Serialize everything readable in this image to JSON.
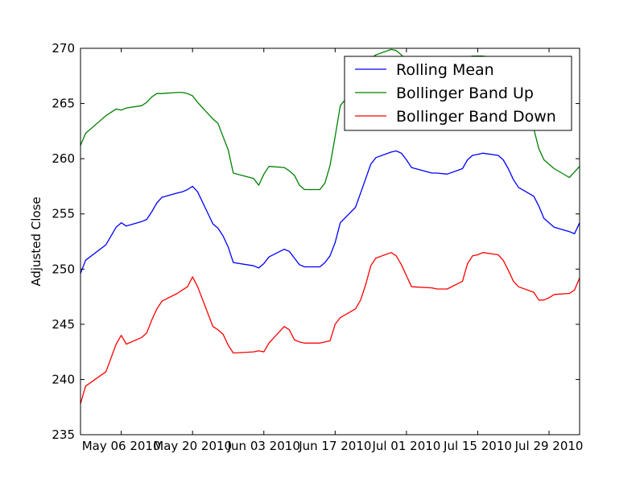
{
  "chart_data": {
    "type": "line",
    "title": "",
    "xlabel": "",
    "ylabel": "Adjusted Close",
    "xlim": [
      "2010-04-28",
      "2010-08-04"
    ],
    "ylim": [
      235,
      270
    ],
    "grid": false,
    "legend_position": "top-right",
    "x_tick_labels": [
      "May 06 2010",
      "May 20 2010",
      "Jun 03 2010",
      "Jun 17 2010",
      "Jul 01 2010",
      "Jul 15 2010",
      "Jul 29 2010"
    ],
    "x_tick_dates": [
      "2010-05-06",
      "2010-05-20",
      "2010-06-03",
      "2010-06-17",
      "2010-07-01",
      "2010-07-15",
      "2010-07-29"
    ],
    "y_tick_labels": [
      "235",
      "240",
      "245",
      "250",
      "255",
      "260",
      "265",
      "270"
    ],
    "y_tick_values": [
      235,
      240,
      245,
      250,
      255,
      260,
      265,
      270
    ],
    "series": [
      {
        "name": "Rolling Mean",
        "color": "#0000ff",
        "points": [
          [
            "2010-04-28",
            249.6
          ],
          [
            "2010-04-29",
            250.8
          ],
          [
            "2010-05-03",
            252.2
          ],
          [
            "2010-05-05",
            253.8
          ],
          [
            "2010-05-06",
            254.2
          ],
          [
            "2010-05-07",
            253.9
          ],
          [
            "2010-05-10",
            254.3
          ],
          [
            "2010-05-11",
            254.5
          ],
          [
            "2010-05-12",
            255.2
          ],
          [
            "2010-05-13",
            256.0
          ],
          [
            "2010-05-14",
            256.5
          ],
          [
            "2010-05-17",
            256.9
          ],
          [
            "2010-05-18",
            257.0
          ],
          [
            "2010-05-19",
            257.2
          ],
          [
            "2010-05-20",
            257.5
          ],
          [
            "2010-05-21",
            257.0
          ],
          [
            "2010-05-24",
            254.1
          ],
          [
            "2010-05-25",
            253.7
          ],
          [
            "2010-05-26",
            253.0
          ],
          [
            "2010-05-27",
            252.0
          ],
          [
            "2010-05-28",
            250.6
          ],
          [
            "2010-06-01",
            250.3
          ],
          [
            "2010-06-02",
            250.1
          ],
          [
            "2010-06-03",
            250.5
          ],
          [
            "2010-06-04",
            251.1
          ],
          [
            "2010-06-07",
            251.8
          ],
          [
            "2010-06-08",
            251.6
          ],
          [
            "2010-06-09",
            251.0
          ],
          [
            "2010-06-10",
            250.4
          ],
          [
            "2010-06-11",
            250.2
          ],
          [
            "2010-06-14",
            250.2
          ],
          [
            "2010-06-15",
            250.6
          ],
          [
            "2010-06-16",
            251.2
          ],
          [
            "2010-06-17",
            252.4
          ],
          [
            "2010-06-18",
            254.2
          ],
          [
            "2010-06-21",
            255.6
          ],
          [
            "2010-06-22",
            256.9
          ],
          [
            "2010-06-23",
            258.2
          ],
          [
            "2010-06-24",
            259.5
          ],
          [
            "2010-06-25",
            260.1
          ],
          [
            "2010-06-28",
            260.6
          ],
          [
            "2010-06-29",
            260.7
          ],
          [
            "2010-06-30",
            260.5
          ],
          [
            "2010-07-01",
            259.9
          ],
          [
            "2010-07-02",
            259.2
          ],
          [
            "2010-07-06",
            258.7
          ],
          [
            "2010-07-07",
            258.7
          ],
          [
            "2010-07-09",
            258.6
          ],
          [
            "2010-07-12",
            259.1
          ],
          [
            "2010-07-13",
            259.9
          ],
          [
            "2010-07-14",
            260.3
          ],
          [
            "2010-07-15",
            260.4
          ],
          [
            "2010-07-16",
            260.5
          ],
          [
            "2010-07-19",
            260.3
          ],
          [
            "2010-07-20",
            259.9
          ],
          [
            "2010-07-21",
            259.1
          ],
          [
            "2010-07-22",
            258.1
          ],
          [
            "2010-07-23",
            257.4
          ],
          [
            "2010-07-26",
            256.6
          ],
          [
            "2010-07-27",
            255.7
          ],
          [
            "2010-07-28",
            254.6
          ],
          [
            "2010-07-29",
            254.2
          ],
          [
            "2010-07-30",
            253.8
          ],
          [
            "2010-08-02",
            253.4
          ],
          [
            "2010-08-03",
            253.2
          ],
          [
            "2010-08-04",
            254.2
          ]
        ]
      },
      {
        "name": "Bollinger Band Up",
        "color": "#008000",
        "points": [
          [
            "2010-04-28",
            261.2
          ],
          [
            "2010-04-29",
            262.3
          ],
          [
            "2010-05-03",
            263.9
          ],
          [
            "2010-05-05",
            264.5
          ],
          [
            "2010-05-06",
            264.4
          ],
          [
            "2010-05-07",
            264.6
          ],
          [
            "2010-05-10",
            264.8
          ],
          [
            "2010-05-11",
            265.1
          ],
          [
            "2010-05-12",
            265.6
          ],
          [
            "2010-05-13",
            265.9
          ],
          [
            "2010-05-14",
            265.9
          ],
          [
            "2010-05-17",
            266.0
          ],
          [
            "2010-05-18",
            266.0
          ],
          [
            "2010-05-19",
            265.9
          ],
          [
            "2010-05-20",
            265.7
          ],
          [
            "2010-05-21",
            265.1
          ],
          [
            "2010-05-24",
            263.6
          ],
          [
            "2010-05-25",
            263.2
          ],
          [
            "2010-05-26",
            262.0
          ],
          [
            "2010-05-27",
            260.8
          ],
          [
            "2010-05-28",
            258.7
          ],
          [
            "2010-06-01",
            258.2
          ],
          [
            "2010-06-02",
            257.6
          ],
          [
            "2010-06-03",
            258.6
          ],
          [
            "2010-06-04",
            259.3
          ],
          [
            "2010-06-07",
            259.2
          ],
          [
            "2010-06-08",
            258.9
          ],
          [
            "2010-06-09",
            258.5
          ],
          [
            "2010-06-10",
            257.6
          ],
          [
            "2010-06-11",
            257.2
          ],
          [
            "2010-06-14",
            257.2
          ],
          [
            "2010-06-15",
            257.8
          ],
          [
            "2010-06-16",
            259.4
          ],
          [
            "2010-06-17",
            262.0
          ],
          [
            "2010-06-18",
            264.8
          ],
          [
            "2010-06-21",
            266.5
          ],
          [
            "2010-06-22",
            267.8
          ],
          [
            "2010-06-23",
            268.6
          ],
          [
            "2010-06-24",
            269.1
          ],
          [
            "2010-06-25",
            269.4
          ],
          [
            "2010-06-28",
            269.9
          ],
          [
            "2010-06-29",
            269.8
          ],
          [
            "2010-06-30",
            269.4
          ],
          [
            "2010-07-01",
            268.9
          ],
          [
            "2010-07-02",
            268.9
          ],
          [
            "2010-07-06",
            268.9
          ],
          [
            "2010-07-07",
            268.9
          ],
          [
            "2010-07-09",
            269.0
          ],
          [
            "2010-07-12",
            269.0
          ],
          [
            "2010-07-13",
            269.2
          ],
          [
            "2010-07-14",
            269.3
          ],
          [
            "2010-07-15",
            269.3
          ],
          [
            "2010-07-16",
            269.3
          ],
          [
            "2010-07-19",
            269.1
          ],
          [
            "2010-07-20",
            268.2
          ],
          [
            "2010-07-21",
            266.9
          ],
          [
            "2010-07-22",
            265.9
          ],
          [
            "2010-07-23",
            264.7
          ],
          [
            "2010-07-26",
            262.7
          ],
          [
            "2010-07-27",
            260.9
          ],
          [
            "2010-07-28",
            259.9
          ],
          [
            "2010-07-29",
            259.5
          ],
          [
            "2010-07-30",
            259.1
          ],
          [
            "2010-08-02",
            258.3
          ],
          [
            "2010-08-03",
            258.8
          ],
          [
            "2010-08-04",
            259.3
          ]
        ]
      },
      {
        "name": "Bollinger Band Down",
        "color": "#ff0000",
        "points": [
          [
            "2010-04-28",
            237.8
          ],
          [
            "2010-04-29",
            239.4
          ],
          [
            "2010-05-03",
            240.7
          ],
          [
            "2010-05-05",
            243.2
          ],
          [
            "2010-05-06",
            244.0
          ],
          [
            "2010-05-07",
            243.2
          ],
          [
            "2010-05-10",
            243.8
          ],
          [
            "2010-05-11",
            244.2
          ],
          [
            "2010-05-12",
            245.4
          ],
          [
            "2010-05-13",
            246.4
          ],
          [
            "2010-05-14",
            247.1
          ],
          [
            "2010-05-17",
            247.8
          ],
          [
            "2010-05-18",
            248.1
          ],
          [
            "2010-05-19",
            248.4
          ],
          [
            "2010-05-20",
            249.3
          ],
          [
            "2010-05-21",
            248.4
          ],
          [
            "2010-05-24",
            244.8
          ],
          [
            "2010-05-25",
            244.5
          ],
          [
            "2010-05-26",
            244.1
          ],
          [
            "2010-05-27",
            243.1
          ],
          [
            "2010-05-28",
            242.4
          ],
          [
            "2010-06-01",
            242.5
          ],
          [
            "2010-06-02",
            242.6
          ],
          [
            "2010-06-03",
            242.5
          ],
          [
            "2010-06-04",
            243.3
          ],
          [
            "2010-06-07",
            244.8
          ],
          [
            "2010-06-08",
            244.5
          ],
          [
            "2010-06-09",
            243.6
          ],
          [
            "2010-06-10",
            243.4
          ],
          [
            "2010-06-11",
            243.3
          ],
          [
            "2010-06-14",
            243.3
          ],
          [
            "2010-06-15",
            243.4
          ],
          [
            "2010-06-16",
            243.5
          ],
          [
            "2010-06-17",
            245.0
          ],
          [
            "2010-06-18",
            245.6
          ],
          [
            "2010-06-21",
            246.4
          ],
          [
            "2010-06-22",
            247.2
          ],
          [
            "2010-06-23",
            248.6
          ],
          [
            "2010-06-24",
            250.3
          ],
          [
            "2010-06-25",
            251.0
          ],
          [
            "2010-06-28",
            251.5
          ],
          [
            "2010-06-29",
            251.2
          ],
          [
            "2010-06-30",
            250.4
          ],
          [
            "2010-07-01",
            249.4
          ],
          [
            "2010-07-02",
            248.4
          ],
          [
            "2010-07-06",
            248.3
          ],
          [
            "2010-07-07",
            248.2
          ],
          [
            "2010-07-09",
            248.2
          ],
          [
            "2010-07-12",
            248.9
          ],
          [
            "2010-07-13",
            250.5
          ],
          [
            "2010-07-14",
            251.2
          ],
          [
            "2010-07-15",
            251.3
          ],
          [
            "2010-07-16",
            251.5
          ],
          [
            "2010-07-19",
            251.3
          ],
          [
            "2010-07-20",
            250.8
          ],
          [
            "2010-07-21",
            249.9
          ],
          [
            "2010-07-22",
            248.9
          ],
          [
            "2010-07-23",
            248.4
          ],
          [
            "2010-07-26",
            247.9
          ],
          [
            "2010-07-27",
            247.2
          ],
          [
            "2010-07-28",
            247.2
          ],
          [
            "2010-07-29",
            247.4
          ],
          [
            "2010-07-30",
            247.7
          ],
          [
            "2010-08-02",
            247.8
          ],
          [
            "2010-08-03",
            248.1
          ],
          [
            "2010-08-04",
            249.2
          ]
        ]
      }
    ]
  }
}
